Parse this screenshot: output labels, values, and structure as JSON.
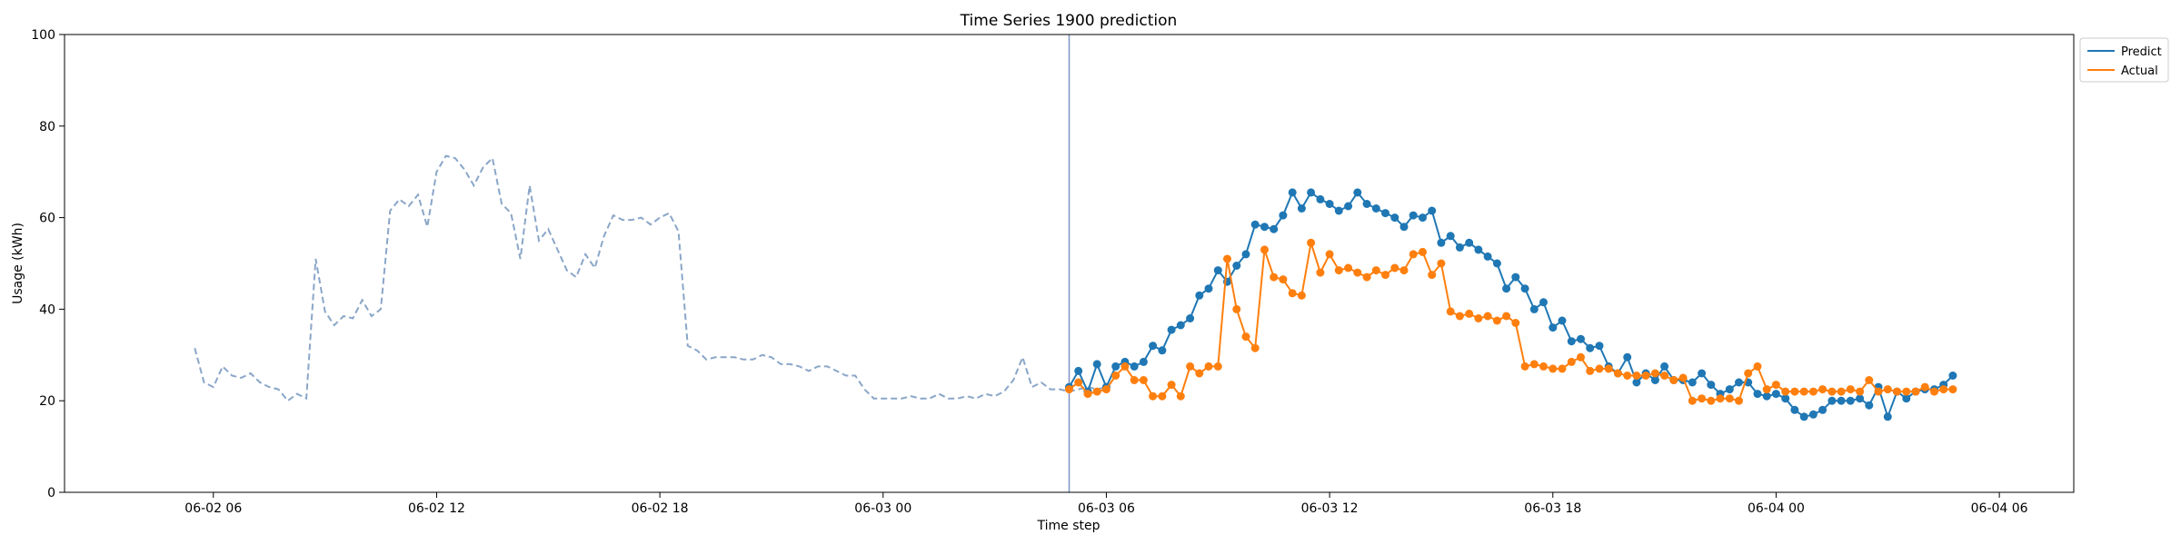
{
  "chart_data": {
    "type": "line",
    "title": "Time Series 1900 prediction",
    "xlabel": "Time step",
    "ylabel": "Usage (kWh)",
    "ylim": [
      0,
      100
    ],
    "yticks": [
      0,
      20,
      40,
      60,
      80,
      100
    ],
    "xlim": [
      "2024-06-02T02:00",
      "2024-06-04T08:00"
    ],
    "xticks": [
      {
        "t": "2024-06-02T06:00",
        "label": "06-02 06"
      },
      {
        "t": "2024-06-02T12:00",
        "label": "06-02 12"
      },
      {
        "t": "2024-06-02T18:00",
        "label": "06-02 18"
      },
      {
        "t": "2024-06-03T00:00",
        "label": "06-03 00"
      },
      {
        "t": "2024-06-03T06:00",
        "label": "06-03 06"
      },
      {
        "t": "2024-06-03T12:00",
        "label": "06-03 12"
      },
      {
        "t": "2024-06-03T18:00",
        "label": "06-03 18"
      },
      {
        "t": "2024-06-04T00:00",
        "label": "06-04 00"
      },
      {
        "t": "2024-06-04T06:00",
        "label": "06-04 06"
      }
    ],
    "step_minutes": 15,
    "legend_position": "top-right",
    "grid": false,
    "forecast_start": "2024-06-03T05:00",
    "history": {
      "start": "2024-06-02T05:30",
      "color": "#8aa6c8",
      "style": "dashed",
      "values": [
        31.5,
        24.0,
        23.0,
        27.5,
        25.5,
        25.0,
        26.0,
        24.0,
        23.0,
        22.5,
        20.0,
        21.5,
        20.5,
        51.0,
        39.5,
        36.5,
        38.5,
        38.0,
        42.0,
        38.5,
        40.0,
        61.5,
        64.0,
        62.5,
        65.0,
        58.0,
        70.0,
        73.5,
        73.0,
        70.5,
        67.0,
        71.0,
        73.0,
        63.0,
        61.0,
        51.0,
        67.0,
        55.0,
        57.5,
        53.0,
        48.5,
        47.0,
        52.0,
        49.0,
        56.0,
        60.5,
        59.5,
        59.5,
        60.0,
        58.5,
        60.0,
        61.0,
        57.0,
        32.0,
        31.0,
        29.0,
        29.5,
        29.5,
        29.5,
        29.0,
        29.0,
        30.0,
        29.5,
        28.0,
        28.0,
        27.5,
        26.5,
        27.5,
        27.5,
        26.5,
        25.5,
        25.5,
        22.5,
        20.5,
        20.5,
        20.5,
        20.5,
        21.0,
        20.5,
        20.5,
        21.5,
        20.5,
        20.5,
        21.0,
        20.5,
        21.5,
        21.0,
        22.0,
        24.5,
        29.5,
        23.0,
        24.0,
        22.5,
        22.5,
        22.0,
        22.5,
        23.0,
        22.5,
        23.0
      ]
    },
    "series": [
      {
        "name": "Predict",
        "color": "#1f77b4",
        "start": "2024-06-03T05:00",
        "values": [
          23.0,
          26.5,
          22.0,
          28.0,
          23.0,
          27.5,
          28.5,
          27.5,
          28.5,
          32.0,
          31.0,
          35.5,
          36.5,
          38.0,
          43.0,
          44.5,
          48.5,
          46.0,
          49.5,
          52.0,
          58.5,
          58.0,
          57.5,
          60.5,
          65.5,
          62.0,
          65.5,
          64.0,
          63.0,
          61.5,
          62.5,
          65.5,
          63.0,
          62.0,
          61.0,
          60.0,
          58.0,
          60.5,
          60.0,
          61.5,
          54.5,
          56.0,
          53.5,
          54.5,
          53.0,
          51.5,
          50.0,
          44.5,
          47.0,
          44.5,
          40.0,
          41.5,
          36.0,
          37.5,
          33.0,
          33.5,
          31.5,
          32.0,
          27.5,
          26.0,
          29.5,
          24.0,
          26.0,
          24.5,
          27.5,
          24.5,
          24.5,
          24.0,
          26.0,
          23.5,
          21.5,
          22.5,
          24.0,
          24.0,
          21.5,
          21.0,
          21.5,
          20.5,
          18.0,
          16.5,
          17.0,
          18.0,
          20.0,
          20.0,
          20.0,
          20.5,
          19.0,
          23.0,
          16.5,
          22.0,
          20.5,
          22.0,
          22.5,
          22.5,
          23.5,
          25.5
        ]
      },
      {
        "name": "Actual",
        "color": "#ff7f0e",
        "start": "2024-06-03T05:00",
        "values": [
          22.5,
          24.0,
          21.5,
          22.0,
          22.5,
          25.5,
          27.5,
          24.5,
          24.5,
          21.0,
          21.0,
          23.5,
          21.0,
          27.5,
          26.0,
          27.5,
          27.5,
          51.0,
          40.0,
          34.0,
          31.5,
          53.0,
          47.0,
          46.5,
          43.5,
          43.0,
          54.5,
          48.0,
          52.0,
          48.5,
          49.0,
          48.0,
          47.0,
          48.5,
          47.5,
          49.0,
          48.5,
          52.0,
          52.5,
          47.5,
          50.0,
          39.5,
          38.5,
          39.0,
          38.0,
          38.5,
          37.5,
          38.5,
          37.0,
          27.5,
          28.0,
          27.5,
          27.0,
          27.0,
          28.5,
          29.5,
          26.5,
          27.0,
          27.0,
          26.0,
          25.5,
          25.5,
          25.5,
          26.0,
          25.5,
          24.5,
          25.0,
          20.0,
          20.5,
          20.0,
          20.5,
          20.5,
          20.0,
          26.0,
          27.5,
          22.5,
          23.5,
          22.0,
          22.0,
          22.0,
          22.0,
          22.5,
          22.0,
          22.0,
          22.5,
          22.0,
          24.5,
          22.0,
          22.5,
          22.0,
          22.0,
          22.0,
          23.0,
          22.0,
          22.5,
          22.5
        ]
      }
    ]
  }
}
